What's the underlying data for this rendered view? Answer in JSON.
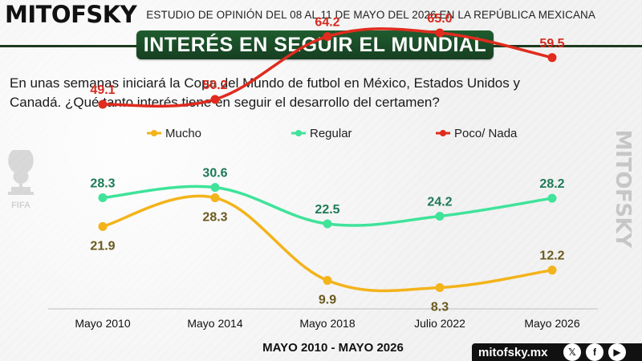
{
  "header": {
    "brand": "MITOFSKY",
    "survey_line": "ESTUDIO DE OPINIÓN DEL 08 AL 11 DE MAYO DEL 2026 EN LA REPÚBLICA MEXICANA",
    "title": "INTERÉS EN SEGUIR EL MUNDIAL"
  },
  "question": "En unas semanas iniciará la Copa del Mundo de futbol en México, Estados Unidos y Canadá. ¿Qué tanto interés tiene en seguir el desarrollo del certamen?",
  "side_brand": "MITOFSKY",
  "fifa_text": "FIFA",
  "footer": {
    "period": "MAYO 2010 - MAYO 2026",
    "url": "mitofsky.mx",
    "social": [
      "x-icon",
      "facebook-icon",
      "youtube-icon"
    ],
    "social_labels": [
      "𝕏",
      "f",
      "▶"
    ]
  },
  "chart_data": {
    "type": "line",
    "categories": [
      "Mayo 2010",
      "Mayo 2014",
      "Mayo 2018",
      "Julio 2022",
      "Mayo 2026"
    ],
    "series": [
      {
        "name": "Mucho",
        "color": "#f3b31b",
        "label_color": "#6b5a1e",
        "values": [
          21.9,
          28.3,
          9.9,
          8.3,
          12.2
        ]
      },
      {
        "name": "Regular",
        "color": "#3fe39a",
        "label_color": "#1e7a56",
        "values": [
          28.3,
          30.6,
          22.5,
          24.2,
          28.2
        ]
      },
      {
        "name": "Poco/ Nada",
        "color": "#e02b1e",
        "label_color": "#d42a1c",
        "values": [
          49.1,
          50.2,
          64.2,
          65.0,
          59.5
        ]
      }
    ],
    "legend_position": "top",
    "grid": false
  }
}
